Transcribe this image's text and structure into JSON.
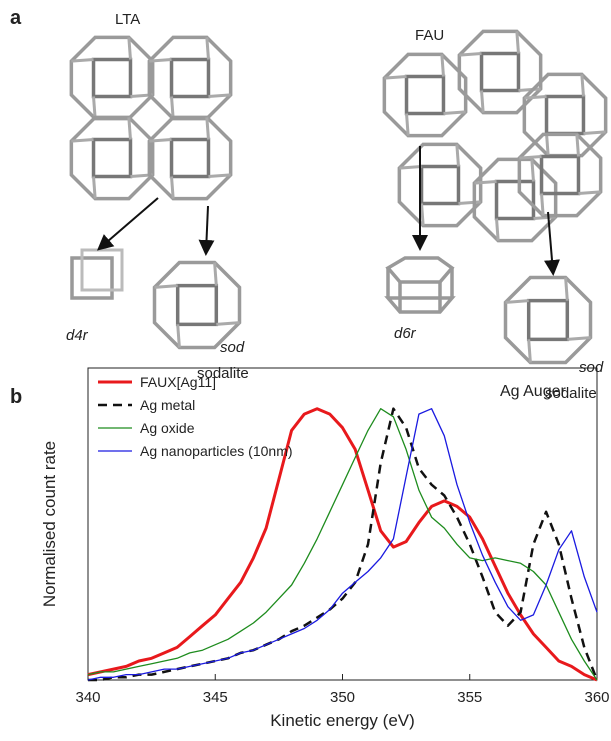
{
  "panel_a": {
    "label": "a",
    "lta": "LTA",
    "fau": "FAU",
    "d4r": "d4r",
    "sod_left": "sod",
    "sodalite_left": "sodalite",
    "d6r": "d6r",
    "sod_right": "sod",
    "sodalite_right": "sodalite"
  },
  "chart_data": {
    "type": "line",
    "panel_label": "b",
    "annotation": "Ag Auger",
    "xlabel": "Kinetic energy (eV)",
    "ylabel": "Normalised count rate",
    "xlim": [
      340,
      360
    ],
    "xticks": [
      340,
      345,
      350,
      355,
      360
    ],
    "ylim": [
      0,
      1.15
    ],
    "legend": "upper left",
    "x": [
      340,
      340.5,
      341,
      341.5,
      342,
      342.5,
      343,
      343.5,
      344,
      344.5,
      345,
      345.5,
      346,
      346.5,
      347,
      347.5,
      348,
      348.5,
      349,
      349.5,
      350,
      350.5,
      351,
      351.5,
      352,
      352.5,
      353,
      353.5,
      354,
      354.5,
      355,
      355.5,
      356,
      356.5,
      357,
      357.5,
      358,
      358.5,
      359,
      359.5,
      360
    ],
    "series": [
      {
        "name": "FAUX[Ag11]",
        "color": "#e8191c",
        "linestyle": "solid",
        "width": 3,
        "values": [
          0.02,
          0.03,
          0.04,
          0.05,
          0.07,
          0.08,
          0.1,
          0.12,
          0.16,
          0.2,
          0.24,
          0.3,
          0.36,
          0.45,
          0.56,
          0.74,
          0.92,
          0.98,
          1.0,
          0.98,
          0.93,
          0.85,
          0.7,
          0.55,
          0.49,
          0.51,
          0.58,
          0.64,
          0.66,
          0.64,
          0.6,
          0.52,
          0.42,
          0.32,
          0.24,
          0.17,
          0.12,
          0.07,
          0.05,
          0.02,
          0.0
        ]
      },
      {
        "name": "Ag metal",
        "color": "#111111",
        "linestyle": "dashed",
        "width": 2.5,
        "values": [
          0.0,
          0.0,
          0.01,
          0.01,
          0.02,
          0.02,
          0.03,
          0.04,
          0.05,
          0.06,
          0.07,
          0.08,
          0.1,
          0.11,
          0.13,
          0.15,
          0.18,
          0.2,
          0.23,
          0.26,
          0.3,
          0.36,
          0.5,
          0.8,
          1.0,
          0.93,
          0.78,
          0.72,
          0.68,
          0.6,
          0.5,
          0.38,
          0.25,
          0.2,
          0.25,
          0.5,
          0.62,
          0.5,
          0.3,
          0.12,
          0.0
        ]
      },
      {
        "name": "Ag oxide",
        "color": "#1e8c1e",
        "linestyle": "solid",
        "width": 1.3,
        "values": [
          0.02,
          0.03,
          0.03,
          0.04,
          0.05,
          0.06,
          0.07,
          0.08,
          0.1,
          0.11,
          0.13,
          0.15,
          0.18,
          0.21,
          0.25,
          0.3,
          0.35,
          0.43,
          0.52,
          0.62,
          0.72,
          0.82,
          0.92,
          1.0,
          0.97,
          0.85,
          0.7,
          0.6,
          0.56,
          0.5,
          0.45,
          0.44,
          0.45,
          0.44,
          0.43,
          0.4,
          0.35,
          0.25,
          0.15,
          0.07,
          0.0
        ]
      },
      {
        "name": "Ag nanoparticles (10nm)",
        "color": "#1a1ae0",
        "linestyle": "solid",
        "width": 1.3,
        "values": [
          0.0,
          0.01,
          0.01,
          0.02,
          0.02,
          0.03,
          0.04,
          0.04,
          0.05,
          0.06,
          0.07,
          0.08,
          0.1,
          0.11,
          0.13,
          0.15,
          0.17,
          0.19,
          0.22,
          0.26,
          0.32,
          0.36,
          0.4,
          0.45,
          0.52,
          0.75,
          0.98,
          1.0,
          0.9,
          0.72,
          0.58,
          0.46,
          0.36,
          0.27,
          0.22,
          0.24,
          0.35,
          0.48,
          0.55,
          0.38,
          0.25
        ]
      }
    ]
  }
}
